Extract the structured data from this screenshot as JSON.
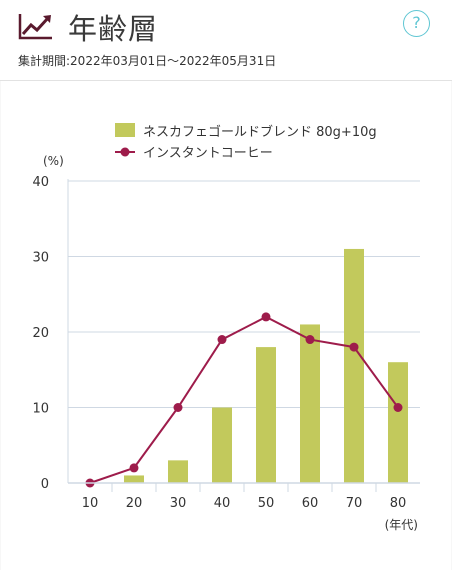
{
  "header": {
    "icon": "trend-chart-icon",
    "title": "年齢層",
    "period": "集計期間:2022年03月01日～2022年05月31日",
    "help_label": "?"
  },
  "colors": {
    "bar": "#c2c95c",
    "line": "#9e1c4b",
    "help": "#5fc6d3",
    "grid": "#cfd8e3"
  },
  "chart_data": {
    "type": "bar",
    "categories": [
      "10",
      "20",
      "30",
      "40",
      "50",
      "60",
      "70",
      "80"
    ],
    "series": [
      {
        "name": "ネスカフェゴールドブレンド 80g+10g",
        "type": "bar",
        "values": [
          0,
          1,
          3,
          10,
          18,
          21,
          31,
          16
        ]
      },
      {
        "name": "インスタントコーヒー",
        "type": "line",
        "values": [
          0,
          2,
          10,
          19,
          22,
          19,
          18,
          10
        ]
      }
    ],
    "ylabel": "(%)",
    "xlabel": "(年代)",
    "ylim": [
      0,
      40
    ],
    "yticks": [
      0,
      10,
      20,
      30,
      40
    ],
    "grid": true,
    "legend_position": "top-right"
  }
}
